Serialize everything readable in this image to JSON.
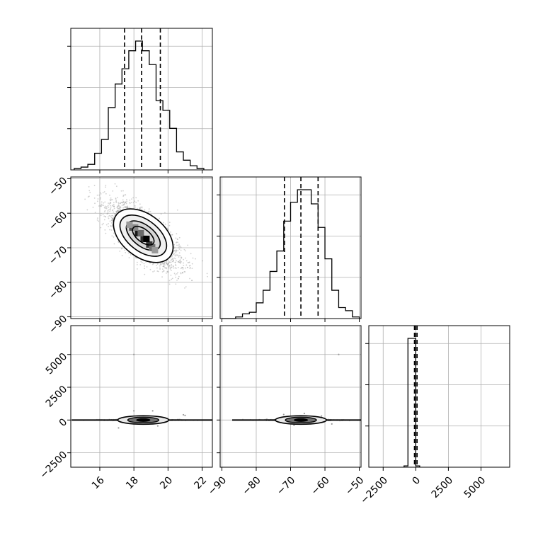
{
  "chart_data": {
    "type": "corner",
    "parameters": [
      {
        "ticks": [
          16,
          18,
          20,
          22
        ],
        "tick_labels": [
          "16",
          "18",
          "20",
          "22"
        ],
        "range": [
          14.3,
          22.6
        ]
      },
      {
        "ticks": [
          -90,
          -80,
          -70,
          -60,
          -50
        ],
        "tick_labels": [
          "−90",
          "−80",
          "−70",
          "−60",
          "−50"
        ],
        "range": [
          -90.5,
          -49.5
        ]
      },
      {
        "ticks": [
          -2500,
          0,
          2500,
          5000
        ],
        "tick_labels": [
          "−2500",
          "0",
          "2500",
          "5000"
        ],
        "range": [
          -3600,
          7200
        ]
      }
    ],
    "histograms": [
      {
        "bin_edges": [
          14.5,
          14.9,
          15.3,
          15.7,
          16.1,
          16.5,
          16.9,
          17.3,
          17.7,
          18.1,
          18.5,
          18.9,
          19.3,
          19.7,
          20.1,
          20.5,
          20.9,
          21.3,
          21.7,
          22.1
        ],
        "counts": [
          1,
          2,
          4,
          12,
          22,
          45,
          62,
          73,
          86,
          93,
          86,
          76,
          50,
          43,
          30,
          13,
          7,
          3,
          1
        ],
        "quantile_lines": [
          17.45,
          18.45,
          19.55
        ]
      },
      {
        "bin_edges": [
          -90,
          -88,
          -86,
          -84,
          -82,
          -80,
          -78,
          -76,
          -74,
          -72,
          -70,
          -68,
          -66,
          -64,
          -62,
          -60,
          -58,
          -56,
          -54,
          -52,
          -50
        ],
        "counts": [
          0,
          0,
          1,
          3,
          4,
          10,
          18,
          30,
          43,
          62,
          74,
          82,
          82,
          73,
          58,
          38,
          18,
          7,
          5,
          1
        ],
        "quantile_lines": [
          -71.8,
          -67.0,
          -62.0
        ]
      },
      {
        "bin_edges": [
          -900,
          -600,
          -300,
          0,
          300
        ],
        "counts": [
          1,
          100,
          100,
          1
        ],
        "quantile_lines": [
          -100,
          0,
          100
        ]
      }
    ],
    "panels_2d": [
      {
        "x_param": 0,
        "y_param": 1,
        "center": [
          18.5,
          -66.5
        ],
        "description": "negatively correlated density with contours"
      },
      {
        "x_param": 0,
        "y_param": 2,
        "center": [
          18.5,
          0
        ],
        "description": "narrow band at 0"
      },
      {
        "x_param": 1,
        "y_param": 2,
        "center": [
          -67,
          0
        ],
        "description": "narrow band at 0"
      }
    ],
    "grid": true,
    "axis_labels": [
      "",
      "",
      ""
    ]
  }
}
